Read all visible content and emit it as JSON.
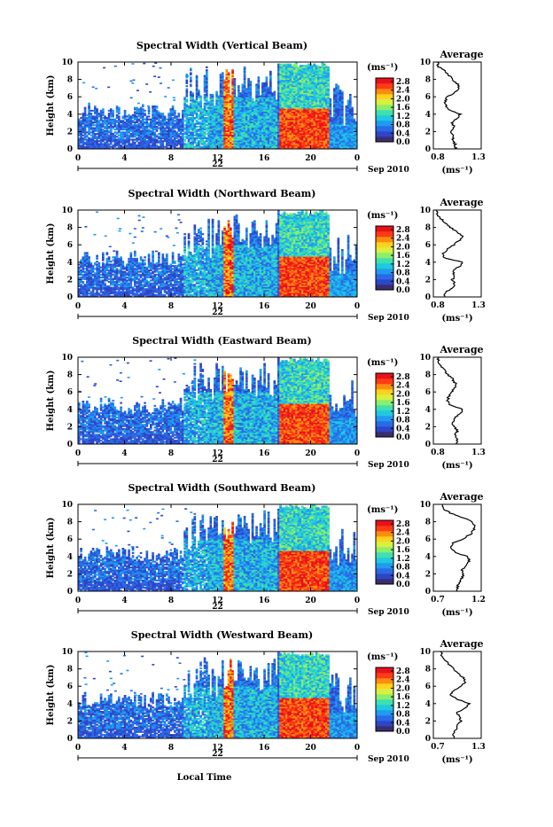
{
  "colors": {
    "scale": [
      "#3a2d6e",
      "#2f45c8",
      "#2a6ae6",
      "#1f9bf0",
      "#20c8e0",
      "#3de0b0",
      "#8cee6a",
      "#d8f040",
      "#ffd21e",
      "#ff8c10",
      "#ff3b14",
      "#e8111b"
    ],
    "ink": "#000000"
  },
  "figure": {
    "xlabel": "Local Time",
    "date_label": "Sep 2010",
    "day_label": "22",
    "colorbar_unit": "(ms⁻¹)",
    "colorbar_ticks": [
      "2.8",
      "2.4",
      "2.0",
      "1.6",
      "1.2",
      "0.8",
      "0.4",
      "0.0"
    ],
    "ylabel": "Height (km)",
    "avg_title": "Average",
    "avg_unit": "(ms⁻¹)"
  },
  "chart_data": [
    {
      "type": "heatmap",
      "title": "Spectral Width (Vertical Beam)",
      "x": {
        "label": "Local Time",
        "ticks": [
          "0",
          "4",
          "8",
          "12",
          "16",
          "20",
          "0"
        ],
        "range": [
          0,
          24
        ]
      },
      "y": {
        "label": "Height (km)",
        "ticks": [
          "10",
          "8",
          "6",
          "4",
          "2",
          "0"
        ],
        "range": [
          0,
          10
        ]
      },
      "colorbar": {
        "unit": "ms^-1",
        "range": [
          0.0,
          3.0
        ]
      },
      "profile": {
        "title": "Average",
        "xlabel": "(ms⁻¹)",
        "xticks": [
          "0.8",
          "1.3"
        ],
        "xlim": [
          0.8,
          1.3
        ],
        "ylim": [
          0,
          10
        ],
        "heights": [
          0.5,
          1.0,
          1.5,
          2.0,
          2.5,
          3.0,
          3.5,
          4.0,
          4.5,
          5.0,
          5.5,
          6.0,
          6.5,
          7.0,
          7.5,
          8.0,
          8.5,
          9.0,
          9.5
        ],
        "values": [
          1.03,
          1.0,
          1.02,
          0.98,
          1.02,
          0.99,
          1.05,
          1.08,
          0.95,
          0.93,
          0.92,
          0.95,
          1.03,
          1.07,
          1.05,
          1.0,
          0.96,
          0.92,
          0.85
        ]
      }
    },
    {
      "type": "heatmap",
      "title": "Spectral Width (Northward Beam)",
      "x": {
        "label": "Local Time",
        "ticks": [
          "0",
          "4",
          "8",
          "12",
          "16",
          "20",
          "0"
        ],
        "range": [
          0,
          24
        ]
      },
      "y": {
        "label": "Height (km)",
        "ticks": [
          "10",
          "8",
          "6",
          "4",
          "2",
          "0"
        ],
        "range": [
          0,
          10
        ]
      },
      "colorbar": {
        "unit": "ms^-1",
        "range": [
          0.0,
          3.0
        ]
      },
      "profile": {
        "title": "Average",
        "xlabel": "(ms⁻¹)",
        "xticks": [
          "0.8",
          "1.3"
        ],
        "xlim": [
          0.8,
          1.3
        ],
        "ylim": [
          0,
          10
        ],
        "heights": [
          0.5,
          1.0,
          1.5,
          2.0,
          2.5,
          3.0,
          3.5,
          4.0,
          4.5,
          5.0,
          5.5,
          6.0,
          6.5,
          7.0,
          7.5,
          8.0,
          8.5,
          9.0,
          9.5
        ],
        "values": [
          0.92,
          1.0,
          1.02,
          1.0,
          1.02,
          1.0,
          1.07,
          1.1,
          0.92,
          0.9,
          0.95,
          1.02,
          1.07,
          1.1,
          1.05,
          0.98,
          0.93,
          0.88,
          0.84
        ]
      }
    },
    {
      "type": "heatmap",
      "title": "Spectral Width (Eastward Beam)",
      "x": {
        "label": "Local Time",
        "ticks": [
          "0",
          "4",
          "8",
          "12",
          "16",
          "20",
          "0"
        ],
        "range": [
          0,
          24
        ]
      },
      "y": {
        "label": "Height (km)",
        "ticks": [
          "10",
          "8",
          "6",
          "4",
          "2",
          "0"
        ],
        "range": [
          0,
          10
        ]
      },
      "colorbar": {
        "unit": "ms^-1",
        "range": [
          0.0,
          3.0
        ]
      },
      "profile": {
        "title": "Average",
        "xlabel": "(ms⁻¹)",
        "xticks": [
          "0.8",
          "1.3"
        ],
        "xlim": [
          0.8,
          1.3
        ],
        "ylim": [
          0,
          10
        ],
        "heights": [
          0.5,
          1.0,
          1.5,
          2.0,
          2.5,
          3.0,
          3.5,
          4.0,
          4.5,
          5.0,
          5.5,
          6.0,
          6.5,
          7.0,
          7.5,
          8.0,
          8.5,
          9.0,
          9.5
        ],
        "values": [
          1.05,
          1.03,
          1.05,
          1.02,
          1.0,
          1.02,
          1.08,
          1.1,
          0.98,
          0.95,
          0.96,
          1.0,
          1.02,
          1.03,
          1.0,
          0.95,
          0.92,
          0.88,
          0.85
        ]
      }
    },
    {
      "type": "heatmap",
      "title": "Spectral Width (Southward Beam)",
      "x": {
        "label": "Local Time",
        "ticks": [
          "0",
          "4",
          "8",
          "12",
          "16",
          "20",
          "0"
        ],
        "range": [
          0,
          24
        ]
      },
      "y": {
        "label": "Height (km)",
        "ticks": [
          "10",
          "8",
          "6",
          "4",
          "2",
          "0"
        ],
        "range": [
          0,
          10
        ]
      },
      "colorbar": {
        "unit": "ms^-1",
        "range": [
          0.0,
          3.0
        ]
      },
      "profile": {
        "title": "Average",
        "xlabel": "(ms⁻¹)",
        "xticks": [
          "0.7",
          "1.2"
        ],
        "xlim": [
          0.7,
          1.2
        ],
        "ylim": [
          0,
          10
        ],
        "heights": [
          0.5,
          1.0,
          1.5,
          2.0,
          2.5,
          3.0,
          3.5,
          4.0,
          4.5,
          5.0,
          5.5,
          6.0,
          6.5,
          7.0,
          7.5,
          8.0,
          8.5,
          9.0,
          9.5
        ],
        "values": [
          0.95,
          0.97,
          1.0,
          1.02,
          1.0,
          1.05,
          1.08,
          1.05,
          0.92,
          0.88,
          0.9,
          1.0,
          1.08,
          1.12,
          1.14,
          1.1,
          1.0,
          0.88,
          0.8
        ]
      }
    },
    {
      "type": "heatmap",
      "title": "Spectral Width (Westward Beam)",
      "x": {
        "label": "Local Time",
        "ticks": [
          "0",
          "4",
          "8",
          "12",
          "16",
          "20",
          "0"
        ],
        "range": [
          0,
          24
        ]
      },
      "y": {
        "label": "Height (km)",
        "ticks": [
          "10",
          "8",
          "6",
          "4",
          "2",
          "0"
        ],
        "range": [
          0,
          10
        ]
      },
      "colorbar": {
        "unit": "ms^-1",
        "range": [
          0.0,
          3.0
        ]
      },
      "profile": {
        "title": "Average",
        "xlabel": "(ms⁻¹)",
        "xticks": [
          "0.7",
          "1.3"
        ],
        "xlim": [
          0.7,
          1.3
        ],
        "ylim": [
          0,
          10
        ],
        "heights": [
          0.5,
          1.0,
          1.5,
          2.0,
          2.5,
          3.0,
          3.5,
          4.0,
          4.5,
          5.0,
          5.5,
          6.0,
          6.5,
          7.0,
          7.5,
          8.0,
          8.5,
          9.0,
          9.5
        ],
        "values": [
          0.95,
          0.98,
          1.0,
          1.05,
          1.02,
          1.0,
          1.1,
          1.15,
          1.0,
          0.92,
          0.95,
          1.05,
          1.1,
          1.08,
          1.0,
          0.95,
          0.9,
          0.85,
          0.8
        ]
      }
    }
  ]
}
